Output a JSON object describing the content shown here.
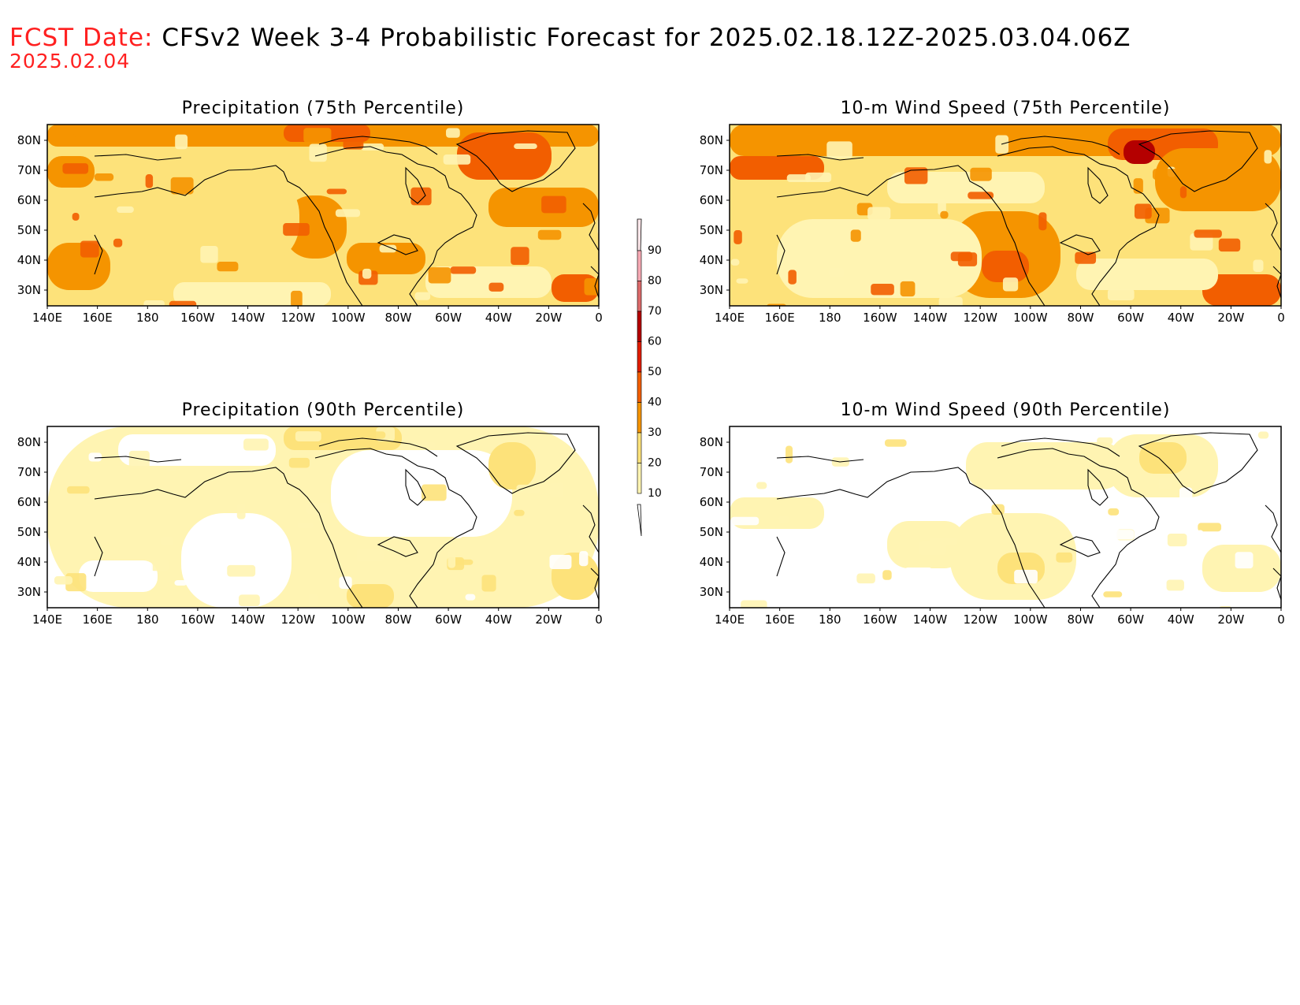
{
  "header": {
    "fcst_label": "FCST Date:",
    "title": "CFSv2 Week 3-4 Probabilistic Forecast for 2025.02.18.12Z-2025.03.04.06Z",
    "fcst_date": "2025.02.04"
  },
  "lat_labels": [
    "80N",
    "70N",
    "60N",
    "50N",
    "40N",
    "30N"
  ],
  "lon_labels": [
    "140E",
    "160E",
    "180",
    "160W",
    "140W",
    "120W",
    "100W",
    "80W",
    "60W",
    "40W",
    "20W",
    "0"
  ],
  "panels": [
    {
      "title": "Precipitation (75th Percentile)",
      "intensity": "moderate"
    },
    {
      "title": "10-m Wind Speed (75th Percentile)",
      "intensity": "moderate-high"
    },
    {
      "title": "Precipitation (90th Percentile)",
      "intensity": "low"
    },
    {
      "title": "10-m Wind Speed (90th Percentile)",
      "intensity": "low"
    }
  ],
  "colorbar": {
    "labels": [
      "90",
      "80",
      "70",
      "60",
      "50",
      "40",
      "30",
      "20",
      "10"
    ],
    "colors": [
      "#f6a9b3",
      "#dc6a6a",
      "#b40000",
      "#e01c00",
      "#f25e00",
      "#f59400",
      "#fde27a",
      "#fff4b2"
    ]
  }
}
